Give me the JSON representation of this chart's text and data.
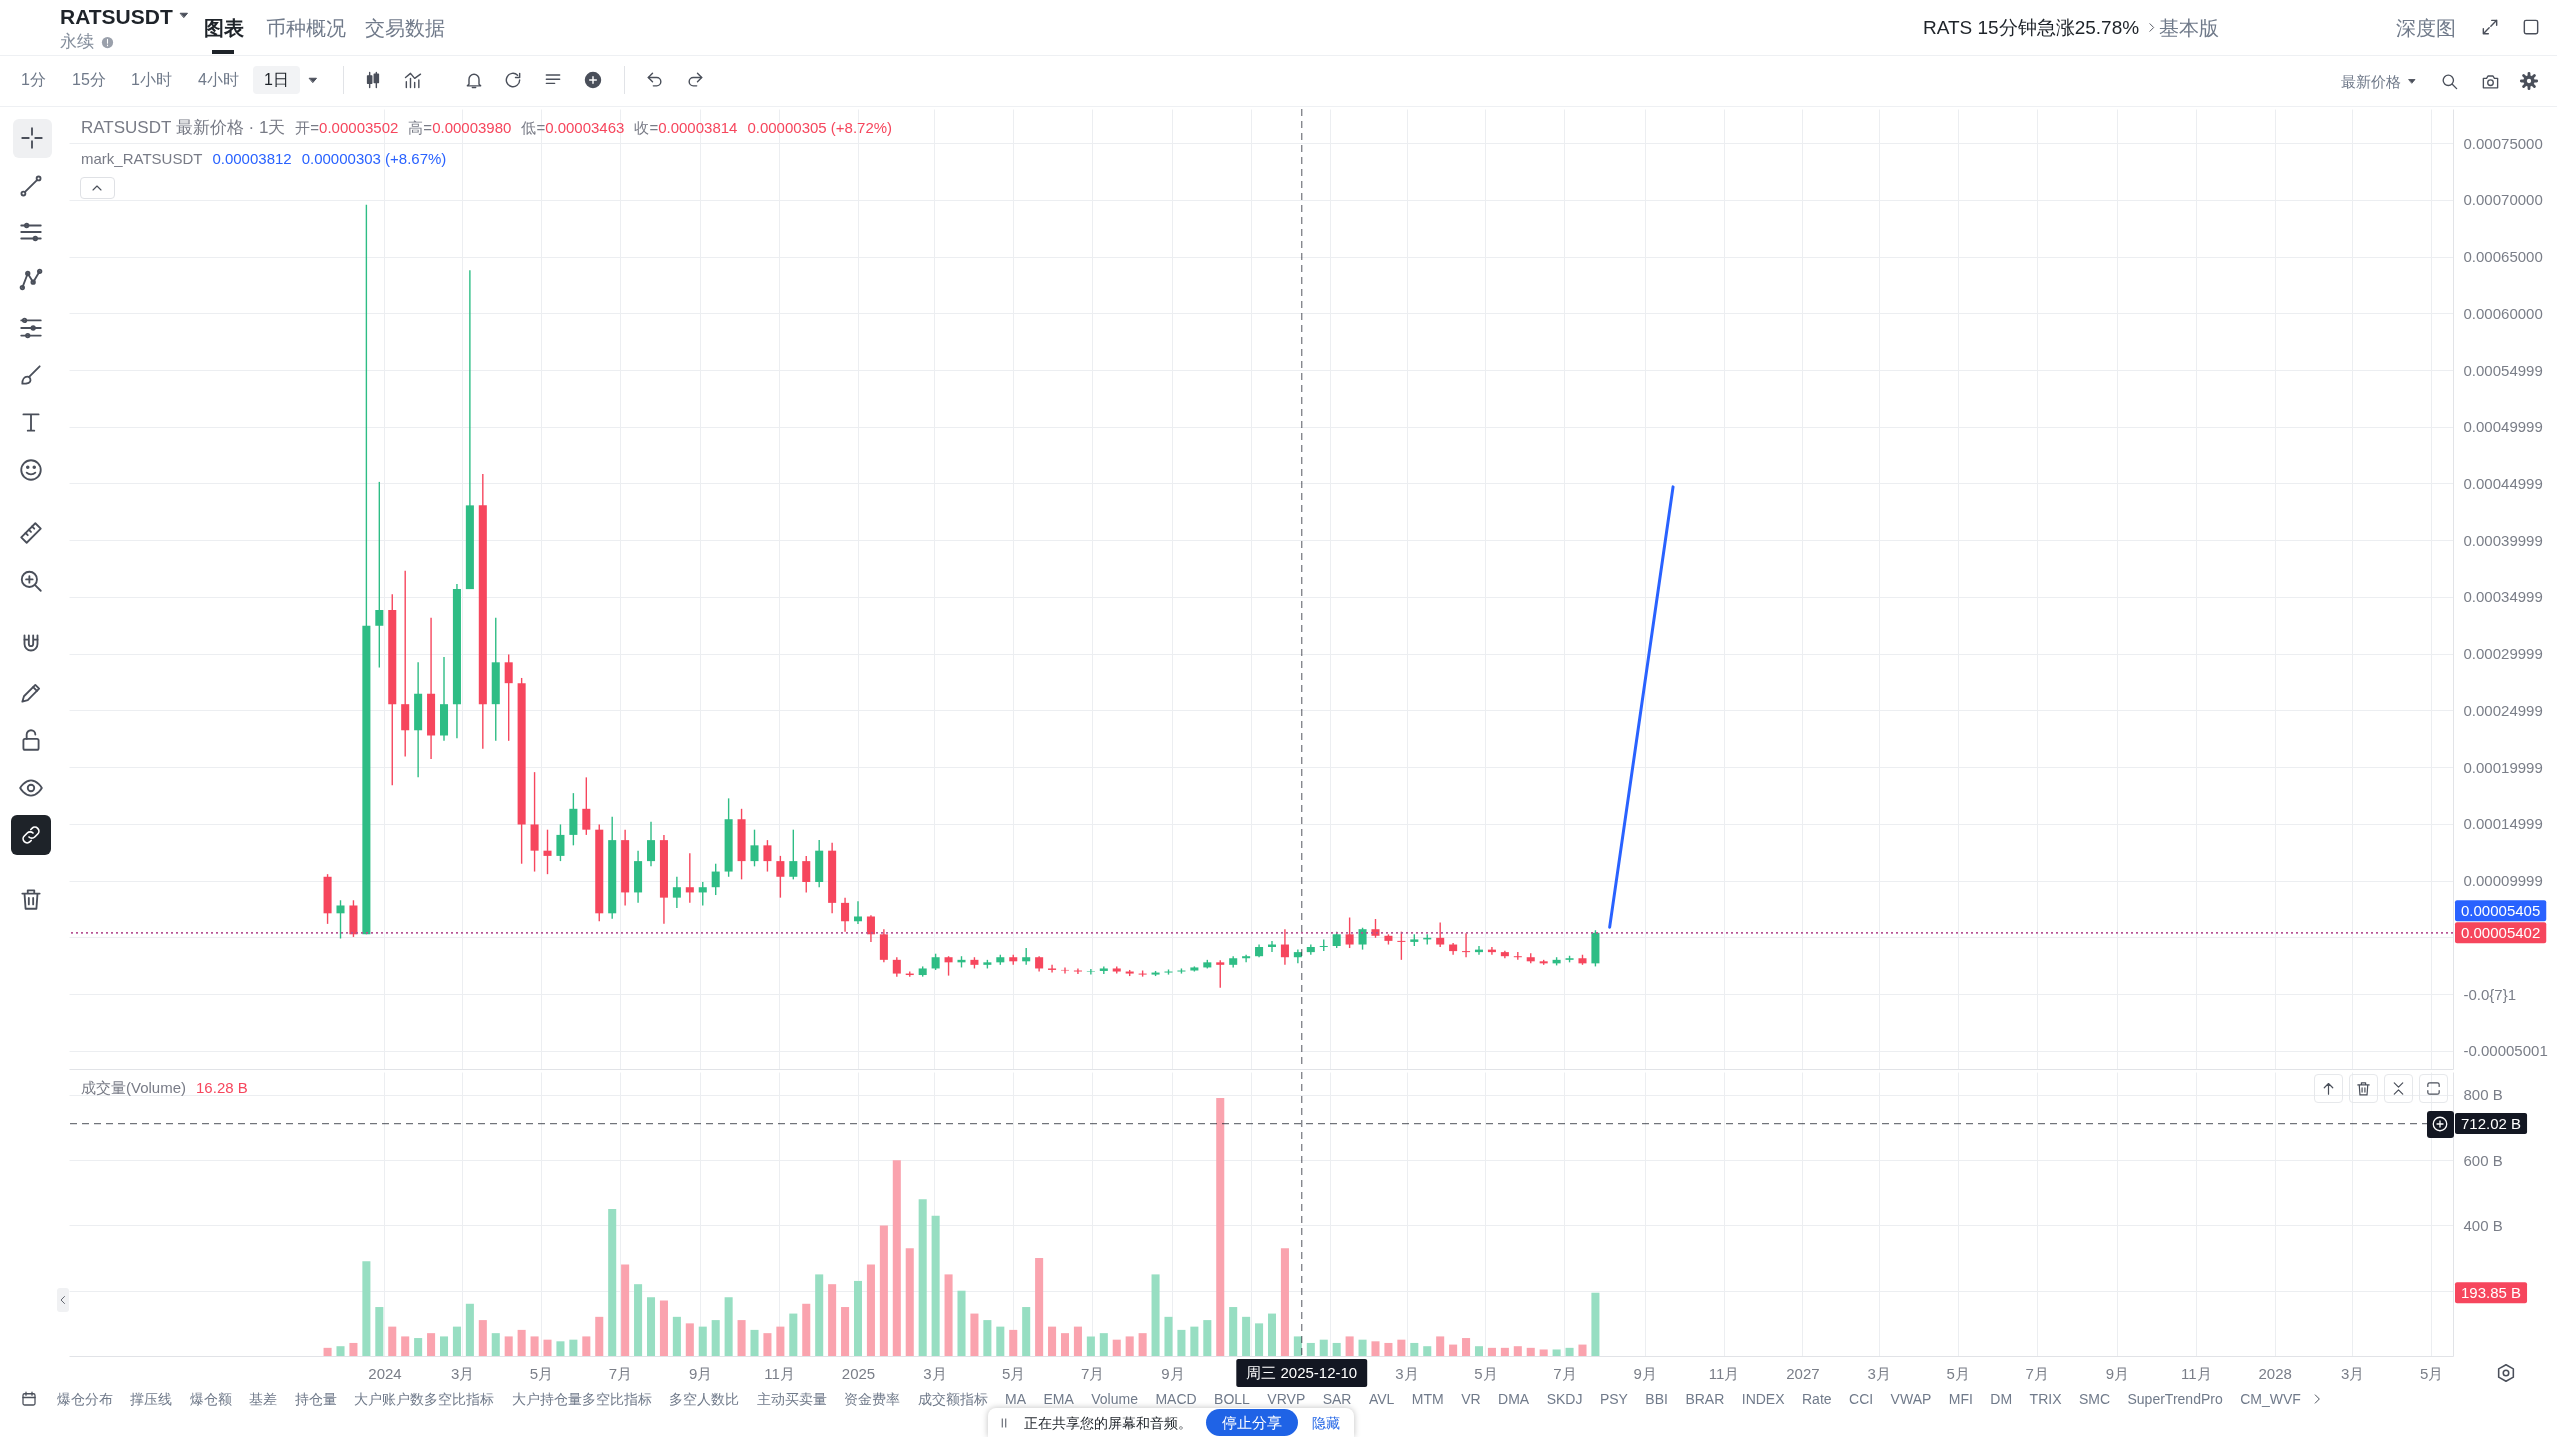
{
  "chart_data": [
    {
      "type": "candlestick",
      "title": "RATSUSDT 最新价格 · 1天",
      "subtitle": "mark_RATSUSDT",
      "annotations": [
        "开=0.00003502",
        "高=0.00003980",
        "低=0.00003463",
        "收=0.00003814",
        "0.00000305 (+8.72%)",
        "0.00003812",
        "0.00000303 (+8.67%)"
      ],
      "x": [
        "2023-11-18",
        "2023-11-28",
        "2023-12-08",
        "2023-12-18",
        "2023-12-28",
        "2024-01-07",
        "2024-01-17",
        "2024-01-27",
        "2024-02-06",
        "2024-02-16",
        "2024-02-26",
        "2024-03-07",
        "2024-03-17",
        "2024-03-27",
        "2024-04-06",
        "2024-04-16",
        "2024-04-26",
        "2024-05-06",
        "2024-05-16",
        "2024-05-26",
        "2024-06-05",
        "2024-06-15",
        "2024-06-25",
        "2024-07-05",
        "2024-07-15",
        "2024-07-25",
        "2024-08-04",
        "2024-08-14",
        "2024-08-24",
        "2024-09-03",
        "2024-09-13",
        "2024-09-23",
        "2024-10-03",
        "2024-10-13",
        "2024-10-23",
        "2024-11-02",
        "2024-11-12",
        "2024-11-22",
        "2024-12-02",
        "2024-12-12",
        "2024-12-22",
        "2025-01-01",
        "2025-01-11",
        "2025-01-21",
        "2025-01-31",
        "2025-02-10",
        "2025-02-20",
        "2025-03-02",
        "2025-03-12",
        "2025-03-22",
        "2025-04-01",
        "2025-04-11",
        "2025-04-21",
        "2025-05-01",
        "2025-05-11",
        "2025-05-21",
        "2025-05-31",
        "2025-06-10",
        "2025-06-20",
        "2025-06-30",
        "2025-07-10",
        "2025-07-20",
        "2025-07-30",
        "2025-08-09",
        "2025-08-19",
        "2025-08-29",
        "2025-09-08",
        "2025-09-18",
        "2025-09-28",
        "2025-10-08",
        "2025-10-18",
        "2025-10-28",
        "2025-11-07",
        "2025-11-17",
        "2025-11-27",
        "2025-12-07",
        "2025-12-17",
        "2025-12-27",
        "2026-01-06",
        "2026-01-16",
        "2026-01-26",
        "2026-02-05",
        "2026-02-15",
        "2026-02-25",
        "2026-03-07",
        "2026-03-17",
        "2026-03-27",
        "2026-04-06",
        "2026-04-16",
        "2026-04-26",
        "2026-05-06",
        "2026-05-16",
        "2026-05-26",
        "2026-06-05",
        "2026-06-15",
        "2026-06-25",
        "2026-07-05",
        "2026-07-15",
        "2026-07-25"
      ],
      "ohlc": [
        [
          0.0001034,
          0.0001057,
          6.19e-05,
          7.12e-05
        ],
        [
          7.12e-05,
          8.27e-05,
          4.9e-05,
          7.81e-05
        ],
        [
          7.81e-05,
          8.27e-05,
          5.04e-05,
          5.27e-05
        ],
        [
          5.27e-05,
          0.0006957,
          5.27e-05,
          0.0003246
        ],
        [
          0.0003246,
          0.0004514,
          0.0002878,
          0.0003385
        ],
        [
          0.0003385,
          0.0003523,
          0.0001841,
          0.0002555
        ],
        [
          0.0002555,
          0.000373,
          0.0002094,
          0.0002325
        ],
        [
          0.0002325,
          0.0002924,
          0.000191,
          0.0002647
        ],
        [
          0.0002647,
          0.0003316,
          0.0002071,
          0.0002279
        ],
        [
          0.0002279,
          0.000297,
          0.0002232,
          0.0002555
        ],
        [
          0.0002555,
          0.0003615,
          0.0002255,
          0.0003569
        ],
        [
          0.0003569,
          0.000638,
          0.0003569,
          0.0004307
        ],
        [
          0.0004307,
          0.0004583,
          0.0002163,
          0.0002555
        ],
        [
          0.0002555,
          0.0003316,
          0.0002232,
          0.0002924
        ],
        [
          0.0002924,
          0.0002993,
          0.0002232,
          0.000274
        ],
        [
          0.000274,
          0.0002786,
          0.0001149,
          0.0001495
        ],
        [
          0.0001495,
          0.0001956,
          0.000108,
          0.0001264
        ],
        [
          0.0001264,
          0.0001449,
          0.0001057,
          0.0001218
        ],
        [
          0.0001218,
          0.0001495,
          0.0001172,
          0.0001403
        ],
        [
          0.0001403,
          0.0001771,
          0.0001311,
          0.0001633
        ],
        [
          0.0001633,
          0.000191,
          0.0001403,
          0.0001449
        ],
        [
          0.0001449,
          0.0001495,
          6.42e-05,
          7.12e-05
        ],
        [
          7.12e-05,
          0.0001564,
          6.65e-05,
          0.0001357
        ],
        [
          0.0001357,
          0.0001449,
          7.81e-05,
          8.96e-05
        ],
        [
          8.96e-05,
          0.0001264,
          8.04e-05,
          0.0001172
        ],
        [
          0.0001172,
          0.0001518,
          0.0001126,
          0.0001357
        ],
        [
          0.0001357,
          0.0001403,
          6.19e-05,
          8.5e-05
        ],
        [
          8.5e-05,
          0.0001034,
          7.58e-05,
          9.42e-05
        ],
        [
          9.42e-05,
          0.0001241,
          8.04e-05,
          8.96e-05
        ],
        [
          8.96e-05,
          9.88e-05,
          7.81e-05,
          9.42e-05
        ],
        [
          9.42e-05,
          0.0001149,
          8.73e-05,
          0.000108
        ],
        [
          0.000108,
          0.0001725,
          0.0001034,
          0.0001541
        ],
        [
          0.0001541,
          0.0001633,
          0.0001011,
          0.0001172
        ],
        [
          0.0001172,
          0.0001449,
          0.0001126,
          0.0001311
        ],
        [
          0.0001311,
          0.0001357,
          0.000108,
          0.0001172
        ],
        [
          0.0001172,
          0.0001218,
          8.5e-05,
          0.0001034
        ],
        [
          0.0001034,
          0.0001449,
          0.0001011,
          0.0001172
        ],
        [
          0.0001172,
          0.0001218,
          8.96e-05,
          9.88e-05
        ],
        [
          9.88e-05,
          0.0001357,
          9.42e-05,
          0.0001264
        ],
        [
          0.0001264,
          0.0001334,
          7.12e-05,
          8.04e-05
        ],
        [
          8.04e-05,
          8.5e-05,
          5.5e-05,
          6.42e-05
        ],
        [
          6.42e-05,
          8.19e-05,
          6.17e-05,
          6.84e-05
        ],
        [
          6.84e-05,
          6.95e-05,
          4.6e-05,
          5.27e-05
        ],
        [
          5.27e-05,
          5.72e-05,
          2.8e-05,
          3.02e-05
        ],
        [
          3.02e-05,
          3.25e-05,
          1.54e-05,
          1.81e-05
        ],
        [
          1.81e-05,
          1.99e-05,
          1.54e-05,
          1.68e-05
        ],
        [
          1.68e-05,
          2.44e-05,
          1.54e-05,
          2.26e-05
        ],
        [
          2.26e-05,
          3.56e-05,
          2.13e-05,
          3.25e-05
        ],
        [
          3.25e-05,
          3.34e-05,
          1.63e-05,
          2.8e-05
        ],
        [
          2.8e-05,
          3.34e-05,
          2.35e-05,
          3.02e-05
        ],
        [
          3.02e-05,
          3.25e-05,
          2.26e-05,
          2.58e-05
        ],
        [
          2.58e-05,
          3.02e-05,
          2.26e-05,
          2.8e-05
        ],
        [
          2.8e-05,
          3.47e-05,
          2.58e-05,
          3.25e-05
        ],
        [
          3.25e-05,
          3.47e-05,
          2.58e-05,
          2.89e-05
        ],
        [
          2.89e-05,
          4.06e-05,
          2.58e-05,
          3.25e-05
        ],
        [
          3.25e-05,
          3.34e-05,
          1.99e-05,
          2.26e-05
        ],
        [
          2.26e-05,
          2.58e-05,
          1.9e-05,
          2.13e-05
        ],
        [
          2.13e-05,
          2.35e-05,
          1.81e-05,
          2.08e-05
        ],
        [
          2.08e-05,
          2.26e-05,
          1.77e-05,
          1.99e-05
        ],
        [
          1.99e-05,
          2.21e-05,
          1.72e-05,
          2.04e-05
        ],
        [
          2.04e-05,
          2.44e-05,
          1.77e-05,
          2.26e-05
        ],
        [
          2.26e-05,
          2.44e-05,
          1.81e-05,
          1.99e-05
        ],
        [
          1.99e-05,
          2.13e-05,
          1.59e-05,
          1.81e-05
        ],
        [
          1.81e-05,
          2.08e-05,
          1.54e-05,
          1.72e-05
        ],
        [
          1.72e-05,
          2.04e-05,
          1.59e-05,
          1.9e-05
        ],
        [
          1.9e-05,
          2.17e-05,
          1.72e-05,
          1.99e-05
        ],
        [
          1.99e-05,
          2.26e-05,
          1.81e-05,
          2.08e-05
        ],
        [
          2.08e-05,
          2.44e-05,
          1.99e-05,
          2.35e-05
        ],
        [
          2.35e-05,
          3.02e-05,
          2.26e-05,
          2.8e-05
        ],
        [
          2.8e-05,
          2.98e-05,
          5.5e-06,
          2.58e-05
        ],
        [
          2.58e-05,
          3.34e-05,
          2.35e-05,
          3.16e-05
        ],
        [
          3.16e-05,
          3.47e-05,
          2.8e-05,
          3.34e-05
        ],
        [
          3.34e-05,
          4.37e-05,
          3.25e-05,
          4.15e-05
        ],
        [
          4.15e-05,
          4.69e-05,
          3.7e-05,
          4.37e-05
        ],
        [
          4.37e-05,
          5.72e-05,
          2.58e-05,
          3.25e-05
        ],
        [
          3.25e-05,
          3.92e-05,
          2.71e-05,
          3.7e-05
        ],
        [
          3.7e-05,
          4.37e-05,
          3.47e-05,
          4.15e-05
        ],
        [
          4.15e-05,
          4.82e-05,
          3.79e-05,
          4.24e-05
        ],
        [
          4.24e-05,
          5.5e-05,
          4.06e-05,
          5.27e-05
        ],
        [
          5.27e-05,
          6.75e-05,
          4.06e-05,
          4.37e-05
        ],
        [
          4.37e-05,
          5.85e-05,
          3.92e-05,
          5.72e-05
        ],
        [
          5.72e-05,
          6.62e-05,
          4.96e-05,
          5.14e-05
        ],
        [
          5.14e-05,
          5.27e-05,
          4.37e-05,
          4.69e-05
        ],
        [
          4.69e-05,
          5.5e-05,
          3.02e-05,
          4.6e-05
        ],
        [
          4.6e-05,
          5.27e-05,
          4.24e-05,
          4.82e-05
        ],
        [
          4.82e-05,
          5.27e-05,
          4.37e-05,
          4.96e-05
        ],
        [
          4.96e-05,
          6.3e-05,
          4.15e-05,
          4.37e-05
        ],
        [
          4.37e-05,
          4.51e-05,
          3.47e-05,
          3.79e-05
        ],
        [
          3.79e-05,
          5.36e-05,
          3.25e-05,
          3.7e-05
        ],
        [
          3.7e-05,
          4.24e-05,
          3.47e-05,
          3.92e-05
        ],
        [
          3.92e-05,
          4.15e-05,
          3.47e-05,
          3.7e-05
        ],
        [
          3.7e-05,
          3.83e-05,
          3.16e-05,
          3.34e-05
        ],
        [
          3.34e-05,
          3.7e-05,
          3.02e-05,
          3.25e-05
        ],
        [
          3.25e-05,
          3.61e-05,
          2.71e-05,
          2.89e-05
        ],
        [
          2.89e-05,
          3.02e-05,
          2.58e-05,
          2.71e-05
        ],
        [
          2.71e-05,
          3.25e-05,
          2.53e-05,
          3.02e-05
        ],
        [
          3.02e-05,
          3.38e-05,
          2.8e-05,
          3.16e-05
        ],
        [
          3.16e-05,
          3.47e-05,
          2.58e-05,
          2.71e-05
        ],
        [
          2.71e-05,
          5.63e-05,
          2.44e-05,
          5.402e-05
        ]
      ],
      "colors": [
        "#f6465d",
        "#2ebd85",
        "#f6465d",
        "#2ebd85",
        "#2ebd85",
        "#f6465d",
        "#f6465d",
        "#2ebd85",
        "#f6465d",
        "#2ebd85",
        "#2ebd85",
        "#2ebd85",
        "#f6465d",
        "#2ebd85",
        "#f6465d",
        "#f6465d",
        "#f6465d",
        "#f6465d",
        "#2ebd85",
        "#2ebd85",
        "#f6465d",
        "#f6465d",
        "#2ebd85",
        "#f6465d",
        "#2ebd85",
        "#2ebd85",
        "#f6465d",
        "#2ebd85",
        "#f6465d",
        "#2ebd85",
        "#2ebd85",
        "#2ebd85",
        "#f6465d",
        "#2ebd85",
        "#f6465d",
        "#f6465d",
        "#2ebd85",
        "#f6465d",
        "#2ebd85",
        "#f6465d",
        "#f6465d",
        "#2ebd85",
        "#f6465d",
        "#f6465d",
        "#f6465d",
        "#f6465d",
        "#2ebd85",
        "#2ebd85",
        "#f6465d",
        "#2ebd85",
        "#f6465d",
        "#2ebd85",
        "#2ebd85",
        "#f6465d",
        "#2ebd85",
        "#f6465d",
        "#f6465d",
        "#f6465d",
        "#f6465d",
        "#2ebd85",
        "#2ebd85",
        "#f6465d",
        "#f6465d",
        "#f6465d",
        "#2ebd85",
        "#2ebd85",
        "#2ebd85",
        "#2ebd85",
        "#2ebd85",
        "#f6465d",
        "#2ebd85",
        "#2ebd85",
        "#2ebd85",
        "#2ebd85",
        "#f6465d",
        "#2ebd85",
        "#2ebd85",
        "#2ebd85",
        "#2ebd85",
        "#f6465d",
        "#2ebd85",
        "#f6465d",
        "#f6465d",
        "#f6465d",
        "#2ebd85",
        "#2ebd85",
        "#f6465d",
        "#f6465d",
        "#f6465d",
        "#2ebd85",
        "#f6465d",
        "#f6465d",
        "#f6465d",
        "#f6465d",
        "#f6465d",
        "#2ebd85",
        "#2ebd85",
        "#f6465d",
        "#2ebd85"
      ],
      "series": [
        {
          "type": "line",
          "x": [
            "2026-08-05",
            "2026-09-23"
          ],
          "values": [
            5.9e-05,
            0.000447
          ],
          "color": "#2962ff"
        }
      ],
      "xlim": [
        "2023-05-06",
        "2028-05-14"
      ],
      "xticks": [
        {
          "value": "2024-01-01",
          "label": null
        },
        {
          "value": "2024-03-01",
          "label": null
        },
        {
          "value": "2024-05-01",
          "label": null
        },
        {
          "value": "2024-07-01",
          "label": null
        },
        {
          "value": "2024-09-01",
          "label": null
        },
        {
          "value": "2024-11-01",
          "label": null
        },
        {
          "value": "2025-01-01",
          "label": null
        },
        {
          "value": "2025-03-01",
          "label": null
        },
        {
          "value": "2025-05-01",
          "label": null
        },
        {
          "value": "2025-07-01",
          "label": null
        },
        {
          "value": "2025-09-01",
          "label": null
        },
        {
          "value": "2025-11-01",
          "label": null
        },
        {
          "value": "2026-01-01",
          "label": null
        },
        {
          "value": "2026-03-01",
          "label": null
        },
        {
          "value": "2026-05-01",
          "label": null
        },
        {
          "value": "2026-07-01",
          "label": null
        },
        {
          "value": "2026-09-01",
          "label": null
        },
        {
          "value": "2026-11-01",
          "label": null
        },
        {
          "value": "2027-01-01",
          "label": null
        },
        {
          "value": "2027-03-01",
          "label": null
        },
        {
          "value": "2027-05-01",
          "label": null
        },
        {
          "value": "2027-07-01",
          "label": null
        },
        {
          "value": "2027-09-01",
          "label": null
        },
        {
          "value": "2027-11-01",
          "label": null
        },
        {
          "value": "2028-01-01",
          "label": null
        },
        {
          "value": "2028-03-01",
          "label": null
        },
        {
          "value": "2028-05-01",
          "label": null
        }
      ],
      "ylim": [
        -6.6e-05,
        0.00078
      ],
      "yticks": [
        {
          "value": 0.00075,
          "label": "0.00075000"
        },
        {
          "value": 0.0007,
          "label": "0.00070000"
        },
        {
          "value": 0.00065,
          "label": "0.00065000"
        },
        {
          "value": 0.0006,
          "label": "0.00060000"
        },
        {
          "value": 0.00054999,
          "label": "0.00054999"
        },
        {
          "value": 0.00049999,
          "label": "0.00049999"
        },
        {
          "value": 0.00044999,
          "label": "0.00044999"
        },
        {
          "value": 0.00039999,
          "label": "0.00039999"
        },
        {
          "value": 0.00034999,
          "label": "0.00034999"
        },
        {
          "value": 0.00029999,
          "label": "0.00029999"
        },
        {
          "value": 0.00024999,
          "label": "0.00024999"
        },
        {
          "value": 0.00019999,
          "label": "0.00019999"
        },
        {
          "value": 0.00014999,
          "label": "0.00014999"
        },
        {
          "value": 9.999e-05,
          "label": "0.00009999"
        },
        {
          "value": 4.999e-05,
          "label": null
        },
        {
          "value": -1e-08,
          "label": "-0.0{7}1"
        },
        {
          "value": -5.001e-05,
          "label": "-0.00005001"
        }
      ],
      "grid": true,
      "tick_labels": "y",
      "ref_lines": [
        {
          "axis": "y",
          "value": 5.405e-05,
          "label": "0.00005405",
          "color": "#2962ff",
          "line_style": "dotted"
        },
        {
          "axis": "y",
          "value": 5.402e-05,
          "label": "0.00005402",
          "color": "#f6465d",
          "line_style": "dotted"
        },
        {
          "axis": "x",
          "value": "2025-12-10",
          "color": "#131722",
          "line_style": "dashed"
        }
      ]
    },
    {
      "type": "bar",
      "title": "成交量(Volume)",
      "subtitle": "16.28 B",
      "x": [
        "2023-11-18",
        "2023-11-28",
        "2023-12-08",
        "2023-12-18",
        "2023-12-28",
        "2024-01-07",
        "2024-01-17",
        "2024-01-27",
        "2024-02-06",
        "2024-02-16",
        "2024-02-26",
        "2024-03-07",
        "2024-03-17",
        "2024-03-27",
        "2024-04-06",
        "2024-04-16",
        "2024-04-26",
        "2024-05-06",
        "2024-05-16",
        "2024-05-26",
        "2024-06-05",
        "2024-06-15",
        "2024-06-25",
        "2024-07-05",
        "2024-07-15",
        "2024-07-25",
        "2024-08-04",
        "2024-08-14",
        "2024-08-24",
        "2024-09-03",
        "2024-09-13",
        "2024-09-23",
        "2024-10-03",
        "2024-10-13",
        "2024-10-23",
        "2024-11-02",
        "2024-11-12",
        "2024-11-22",
        "2024-12-02",
        "2024-12-12",
        "2024-12-22",
        "2025-01-01",
        "2025-01-11",
        "2025-01-21",
        "2025-01-31",
        "2025-02-10",
        "2025-02-20",
        "2025-03-02",
        "2025-03-12",
        "2025-03-22",
        "2025-04-01",
        "2025-04-11",
        "2025-04-21",
        "2025-05-01",
        "2025-05-11",
        "2025-05-21",
        "2025-05-31",
        "2025-06-10",
        "2025-06-20",
        "2025-06-30",
        "2025-07-10",
        "2025-07-20",
        "2025-07-30",
        "2025-08-09",
        "2025-08-19",
        "2025-08-29",
        "2025-09-08",
        "2025-09-18",
        "2025-09-28",
        "2025-10-08",
        "2025-10-18",
        "2025-10-28",
        "2025-11-07",
        "2025-11-17",
        "2025-11-27",
        "2025-12-07",
        "2025-12-17",
        "2025-12-27",
        "2026-01-06",
        "2026-01-16",
        "2026-01-26",
        "2026-02-05",
        "2026-02-15",
        "2026-02-25",
        "2026-03-07",
        "2026-03-17",
        "2026-03-27",
        "2026-04-06",
        "2026-04-16",
        "2026-04-26",
        "2026-05-06",
        "2026-05-16",
        "2026-05-26",
        "2026-06-05",
        "2026-06-15",
        "2026-06-25",
        "2026-07-05",
        "2026-07-15",
        "2026-07-25"
      ],
      "values": [
        25,
        30,
        40,
        290,
        150,
        90,
        60,
        55,
        70,
        60,
        90,
        160,
        110,
        70,
        60,
        80,
        60,
        50,
        45,
        50,
        60,
        120,
        450,
        280,
        220,
        180,
        170,
        120,
        100,
        90,
        110,
        180,
        110,
        80,
        70,
        90,
        130,
        160,
        250,
        220,
        150,
        230,
        280,
        400,
        600,
        330,
        480,
        430,
        250,
        200,
        130,
        110,
        90,
        80,
        150,
        300,
        90,
        70,
        90,
        60,
        70,
        50,
        60,
        70,
        250,
        120,
        80,
        90,
        110,
        790,
        150,
        120,
        100,
        130,
        330,
        60,
        40,
        50,
        40,
        60,
        50,
        45,
        40,
        50,
        40,
        30,
        60,
        35,
        55,
        30,
        25,
        25,
        30,
        25,
        20,
        20,
        25,
        35,
        193.85
      ],
      "colors": [
        "#faa3ae",
        "#97dec2",
        "#faa3ae",
        "#97dec2",
        "#97dec2",
        "#faa3ae",
        "#faa3ae",
        "#97dec2",
        "#faa3ae",
        "#97dec2",
        "#97dec2",
        "#97dec2",
        "#faa3ae",
        "#97dec2",
        "#faa3ae",
        "#faa3ae",
        "#faa3ae",
        "#faa3ae",
        "#97dec2",
        "#97dec2",
        "#faa3ae",
        "#faa3ae",
        "#97dec2",
        "#faa3ae",
        "#97dec2",
        "#97dec2",
        "#faa3ae",
        "#97dec2",
        "#faa3ae",
        "#97dec2",
        "#97dec2",
        "#97dec2",
        "#faa3ae",
        "#97dec2",
        "#faa3ae",
        "#faa3ae",
        "#97dec2",
        "#faa3ae",
        "#97dec2",
        "#faa3ae",
        "#faa3ae",
        "#97dec2",
        "#faa3ae",
        "#faa3ae",
        "#faa3ae",
        "#faa3ae",
        "#97dec2",
        "#97dec2",
        "#faa3ae",
        "#97dec2",
        "#faa3ae",
        "#97dec2",
        "#97dec2",
        "#faa3ae",
        "#97dec2",
        "#faa3ae",
        "#faa3ae",
        "#faa3ae",
        "#faa3ae",
        "#97dec2",
        "#97dec2",
        "#faa3ae",
        "#faa3ae",
        "#faa3ae",
        "#97dec2",
        "#97dec2",
        "#97dec2",
        "#97dec2",
        "#97dec2",
        "#faa3ae",
        "#97dec2",
        "#97dec2",
        "#97dec2",
        "#97dec2",
        "#faa3ae",
        "#97dec2",
        "#97dec2",
        "#97dec2",
        "#97dec2",
        "#faa3ae",
        "#97dec2",
        "#faa3ae",
        "#faa3ae",
        "#faa3ae",
        "#97dec2",
        "#97dec2",
        "#faa3ae",
        "#faa3ae",
        "#faa3ae",
        "#97dec2",
        "#faa3ae",
        "#faa3ae",
        "#faa3ae",
        "#faa3ae",
        "#faa3ae",
        "#97dec2",
        "#97dec2",
        "#faa3ae",
        "#97dec2"
      ],
      "xlim": [
        "2023-05-06",
        "2028-05-14"
      ],
      "xticks": [
        {
          "value": "2024-01-01",
          "label": "2024"
        },
        {
          "value": "2024-03-01",
          "label": "3月"
        },
        {
          "value": "2024-05-01",
          "label": "5月"
        },
        {
          "value": "2024-07-01",
          "label": "7月"
        },
        {
          "value": "2024-09-01",
          "label": "9月"
        },
        {
          "value": "2024-11-01",
          "label": "11月"
        },
        {
          "value": "2025-01-01",
          "label": "2025"
        },
        {
          "value": "2025-03-01",
          "label": "3月"
        },
        {
          "value": "2025-05-01",
          "label": "5月"
        },
        {
          "value": "2025-07-01",
          "label": "7月"
        },
        {
          "value": "2025-09-01",
          "label": "9月"
        },
        {
          "value": "2025-11-01",
          "label": null
        },
        {
          "value": "2026-01-01",
          "label": null
        },
        {
          "value": "2026-03-01",
          "label": "3月"
        },
        {
          "value": "2026-05-01",
          "label": "5月"
        },
        {
          "value": "2026-07-01",
          "label": "7月"
        },
        {
          "value": "2026-09-01",
          "label": "9月"
        },
        {
          "value": "2026-11-01",
          "label": "11月"
        },
        {
          "value": "2027-01-01",
          "label": "2027"
        },
        {
          "value": "2027-03-01",
          "label": "3月"
        },
        {
          "value": "2027-05-01",
          "label": "5月"
        },
        {
          "value": "2027-07-01",
          "label": "7月"
        },
        {
          "value": "2027-09-01",
          "label": "9月"
        },
        {
          "value": "2027-11-01",
          "label": "11月"
        },
        {
          "value": "2028-01-01",
          "label": "2028"
        },
        {
          "value": "2028-03-01",
          "label": "3月"
        },
        {
          "value": "2028-05-01",
          "label": "5月"
        }
      ],
      "ylim": [
        0,
        870
      ],
      "yticks": [
        {
          "value": 800,
          "label": "800 B"
        },
        {
          "value": 600,
          "label": "600 B"
        },
        {
          "value": 400,
          "label": "400 B"
        },
        {
          "value": 200,
          "label": null
        }
      ],
      "grid": true,
      "ref_lines": [
        {
          "axis": "x",
          "value": "2025-12-10",
          "label": "周三 2025-12-10",
          "color": "#131722",
          "line_style": "dashed"
        },
        {
          "axis": "y",
          "value": 712.02,
          "label": "712.02 B",
          "color": "#131722",
          "line_style": "dashed"
        }
      ],
      "annotations": [
        "193.85 B"
      ]
    },
    {
      "type": "other",
      "annotations": [
        "RATSUSDT",
        "永续",
        "图表",
        "币种概况",
        "交易数据",
        "RATS 15分钟急涨25.78%",
        "基本版",
        "深度图",
        "1分",
        "15分",
        "1小时",
        "4小时",
        "1日",
        "最新价格",
        "爆仓分布",
        "撑压线",
        "爆仓额",
        "基差",
        "持仓量",
        "大户账户数多空比指标",
        "大户持仓量多空比指标",
        "多空人数比",
        "主动买卖量",
        "资金费率",
        "成交额指标",
        "MA",
        "EMA",
        "Volume",
        "MACD",
        "BOLL",
        "VRVP",
        "SAR",
        "AVL",
        "MTM",
        "VR",
        "DMA",
        "SKDJ",
        "PSY",
        "BBI",
        "BRAR",
        "INDEX",
        "Rate",
        "CCI",
        "VWAP",
        "MFI",
        "DM",
        "TRIX",
        "SMC",
        "SuperTrendPro",
        "CM_WVF",
        "正在共享您的屏幕和音频。",
        "停止分享",
        "隐藏"
      ]
    }
  ]
}
